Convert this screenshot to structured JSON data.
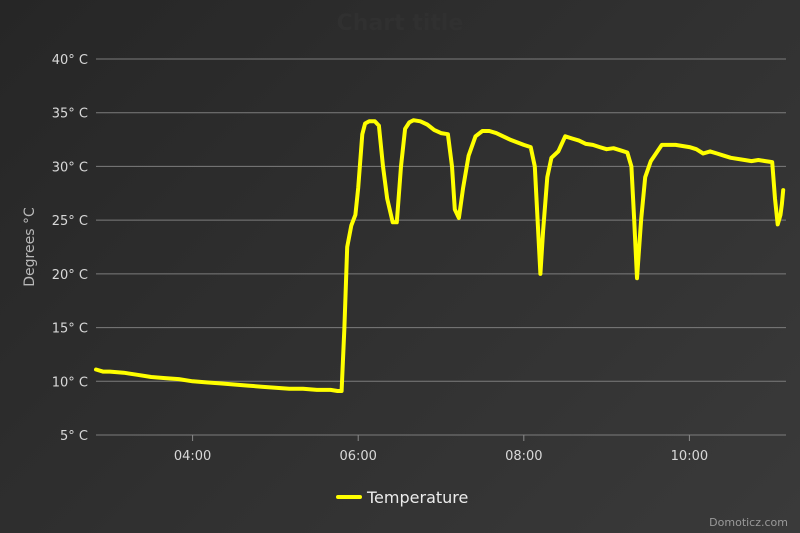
{
  "chart_data": {
    "type": "line",
    "title": "Chart title",
    "ylabel": "Degrees °C",
    "xlabel": "",
    "ylim": [
      5,
      40
    ],
    "y_ticks": [
      5,
      10,
      15,
      20,
      25,
      30,
      35,
      40
    ],
    "y_tick_labels": [
      "5° C",
      "10° C",
      "15° C",
      "20° C",
      "25° C",
      "30° C",
      "35° C",
      "40° C"
    ],
    "x_range": [
      "02:50",
      "11:10"
    ],
    "x_ticks": [
      "04:00",
      "06:00",
      "08:00",
      "10:00"
    ],
    "grid": true,
    "legend_position": "bottom-center",
    "series": [
      {
        "name": "Temperature",
        "color": "#ffff00",
        "x": [
          "02:50",
          "02:55",
          "03:00",
          "03:10",
          "03:20",
          "03:30",
          "03:40",
          "03:50",
          "04:00",
          "04:10",
          "04:20",
          "04:30",
          "04:40",
          "04:50",
          "05:00",
          "05:10",
          "05:20",
          "05:30",
          "05:40",
          "05:45",
          "05:48",
          "05:50",
          "05:52",
          "05:55",
          "05:58",
          "06:00",
          "06:03",
          "06:05",
          "06:08",
          "06:12",
          "06:15",
          "06:18",
          "06:21",
          "06:25",
          "06:28",
          "06:31",
          "06:34",
          "06:37",
          "06:40",
          "06:45",
          "06:50",
          "06:55",
          "07:00",
          "07:05",
          "07:08",
          "07:10",
          "07:13",
          "07:16",
          "07:20",
          "07:25",
          "07:30",
          "07:35",
          "07:40",
          "07:50",
          "08:00",
          "08:05",
          "08:08",
          "08:10",
          "08:12",
          "08:14",
          "08:17",
          "08:20",
          "08:25",
          "08:30",
          "08:35",
          "08:40",
          "08:45",
          "08:50",
          "08:55",
          "09:00",
          "09:05",
          "09:10",
          "09:15",
          "09:18",
          "09:20",
          "09:22",
          "09:25",
          "09:28",
          "09:32",
          "09:40",
          "09:50",
          "10:00",
          "10:05",
          "10:10",
          "10:15",
          "10:20",
          "10:25",
          "10:30",
          "10:40",
          "10:45",
          "10:50",
          "10:55",
          "11:00",
          "11:02",
          "11:04",
          "11:06",
          "11:07",
          "11:08"
        ],
        "values": [
          11.1,
          10.9,
          10.9,
          10.8,
          10.6,
          10.4,
          10.3,
          10.2,
          10.0,
          9.9,
          9.8,
          9.7,
          9.6,
          9.5,
          9.4,
          9.3,
          9.3,
          9.2,
          9.2,
          9.1,
          9.1,
          15.0,
          22.5,
          24.5,
          25.5,
          28.0,
          33.0,
          34.0,
          34.2,
          34.2,
          33.8,
          30.0,
          27.0,
          24.8,
          24.8,
          30.0,
          33.5,
          34.1,
          34.3,
          34.2,
          33.9,
          33.4,
          33.1,
          33.0,
          30.0,
          26.0,
          25.2,
          28.0,
          31.0,
          32.8,
          33.3,
          33.3,
          33.1,
          32.5,
          32.0,
          31.8,
          30.0,
          25.0,
          20.0,
          24.0,
          29.0,
          30.8,
          31.4,
          32.8,
          32.6,
          32.4,
          32.1,
          32.0,
          31.8,
          31.6,
          31.7,
          31.5,
          31.3,
          30.0,
          25.0,
          19.6,
          25.0,
          29.0,
          30.5,
          32.0,
          32.0,
          31.8,
          31.6,
          31.2,
          31.4,
          31.2,
          31.0,
          30.8,
          30.6,
          30.5,
          30.6,
          30.5,
          30.4,
          27.0,
          24.6,
          25.5,
          26.5,
          27.8
        ]
      }
    ]
  },
  "credit": "Domoticz.com"
}
